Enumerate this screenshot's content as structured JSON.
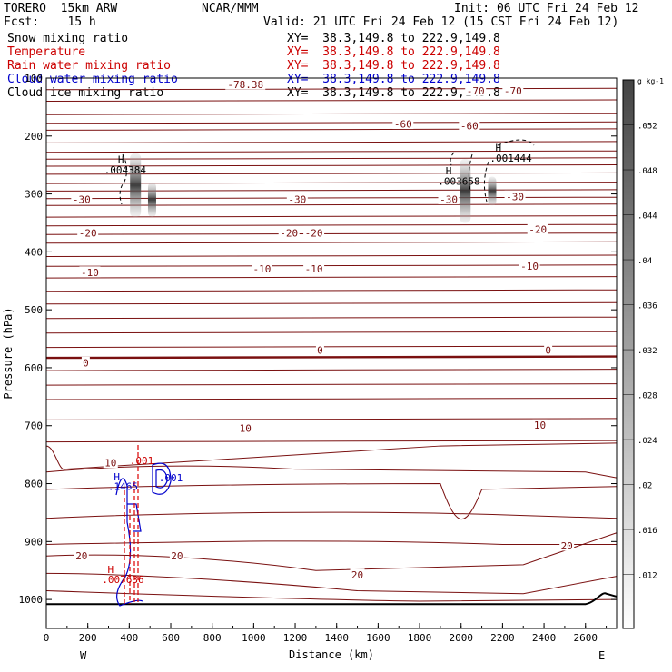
{
  "header": {
    "model": "TORERO  15km ARW",
    "center": "NCAR/MMM",
    "init": "Init: 06 UTC Fri 24 Feb 12",
    "fcst": "Fcst:    15 h",
    "valid": "Valid: 21 UTC Fri 24 Feb 12 (15 CST Fri 24 Feb 12)"
  },
  "legend": [
    {
      "label": "Snow mixing ratio",
      "xy": "",
      "color": "#000000"
    },
    {
      "label": "Temperature",
      "xy": "XY=  38.3,149.8 to 222.9,149.8",
      "color": "#cc0000"
    },
    {
      "label": "Rain water mixing ratio",
      "xy": "XY=  38.3,149.8 to 222.9,149.8",
      "color": "#cc0000"
    },
    {
      "label": "Cloud water mixing ratio",
      "xy": "XY=  38.3,149.8 to 222.9,149.8",
      "color": "#0000cc"
    },
    {
      "label": "Cloud ice mixing ratio",
      "xy": "XY=  38.3,149.8 to 222.9,149.8",
      "color": "#000000"
    }
  ],
  "snow_xy": "XY=  38.3,149.8 to 222.9,149.8",
  "colorbar": {
    "unit": "g kg-1",
    "ticks": [
      ".052",
      ".048",
      ".044",
      ".04",
      ".036",
      ".032",
      ".028",
      ".024",
      ".02",
      ".016",
      ".012"
    ]
  },
  "chart_data": {
    "type": "cross-section contour",
    "xlabel": "Distance (km)",
    "ylabel": "Pressure (hPa)",
    "xlim": [
      0,
      2750
    ],
    "ylim": [
      1050,
      100
    ],
    "x_ticks": [
      "0",
      "200",
      "400",
      "600",
      "800",
      "1000",
      "1200",
      "1400",
      "1600",
      "1800",
      "2000",
      "2200",
      "2400",
      "2600"
    ],
    "y_ticks": [
      "100",
      "200",
      "300",
      "400",
      "500",
      "600",
      "700",
      "800",
      "900",
      "1000"
    ],
    "x_end_labels": {
      "left": "W",
      "right": "E"
    },
    "temperature_contours": [
      {
        "value": -70,
        "pressure_hPa": 140
      },
      {
        "value": -60,
        "pressure_hPa": 190
      },
      {
        "value": -30,
        "pressure_hPa": 320
      },
      {
        "value": -20,
        "pressure_hPa": 385
      },
      {
        "value": -10,
        "pressure_hPa": 450
      },
      {
        "value": 0,
        "pressure_hPa": 583
      },
      {
        "value": 10,
        "pressure_hPa": 728
      },
      {
        "value": 20,
        "pressure_hPa": 920
      }
    ],
    "temperature_labels": [
      {
        "text": "-78.38",
        "x": 960,
        "p": 112
      },
      {
        "text": "-70",
        "x": 2070,
        "p": 123
      },
      {
        "text": "-70",
        "x": 2250,
        "p": 123
      },
      {
        "text": "-60",
        "x": 1720,
        "p": 180
      },
      {
        "text": "-60",
        "x": 2040,
        "p": 183
      },
      {
        "text": "-30",
        "x": 170,
        "p": 310
      },
      {
        "text": "-30",
        "x": 1210,
        "p": 310
      },
      {
        "text": "-30",
        "x": 1940,
        "p": 310
      },
      {
        "text": "-30",
        "x": 2260,
        "p": 305
      },
      {
        "text": "-20",
        "x": 200,
        "p": 368
      },
      {
        "text": "-20",
        "x": 1170,
        "p": 368
      },
      {
        "text": "-20",
        "x": 1290,
        "p": 368
      },
      {
        "text": "-20",
        "x": 2370,
        "p": 362
      },
      {
        "text": "-10",
        "x": 210,
        "p": 436
      },
      {
        "text": "-10",
        "x": 1040,
        "p": 430
      },
      {
        "text": "-10",
        "x": 1290,
        "p": 430
      },
      {
        "text": "-10",
        "x": 2330,
        "p": 425
      },
      {
        "text": "0",
        "x": 190,
        "p": 592
      },
      {
        "text": "0",
        "x": 1320,
        "p": 570
      },
      {
        "text": "0",
        "x": 2420,
        "p": 570
      },
      {
        "text": "10",
        "x": 310,
        "p": 765
      },
      {
        "text": "10",
        "x": 960,
        "p": 705
      },
      {
        "text": "10",
        "x": 2380,
        "p": 700
      },
      {
        "text": "20",
        "x": 170,
        "p": 925
      },
      {
        "text": "20",
        "x": 630,
        "p": 925
      },
      {
        "text": "20",
        "x": 1500,
        "p": 958
      },
      {
        "text": "20",
        "x": 2510,
        "p": 908
      }
    ],
    "annotations": [
      {
        "text": "H",
        "x": 360,
        "p": 240,
        "color": "black"
      },
      {
        "text": ".004384",
        "x": 380,
        "p": 258,
        "color": "black"
      },
      {
        "text": "H",
        "x": 1940,
        "p": 260,
        "color": "black"
      },
      {
        "text": ".003658",
        "x": 1990,
        "p": 278,
        "color": "black"
      },
      {
        "text": "H",
        "x": 2180,
        "p": 220,
        "color": "black"
      },
      {
        "text": ".001444",
        "x": 2240,
        "p": 238,
        "color": "black"
      },
      {
        "text": "H",
        "x": 340,
        "p": 788,
        "color": "blue"
      },
      {
        "text": ".1465",
        "x": 370,
        "p": 805,
        "color": "blue"
      },
      {
        "text": ".001",
        "x": 460,
        "p": 760,
        "color": "red"
      },
      {
        "text": ".001",
        "x": 600,
        "p": 790,
        "color": "blue"
      },
      {
        "text": "H",
        "x": 310,
        "p": 948,
        "color": "red"
      },
      {
        "text": ".007636",
        "x": 370,
        "p": 965,
        "color": "red"
      }
    ]
  }
}
